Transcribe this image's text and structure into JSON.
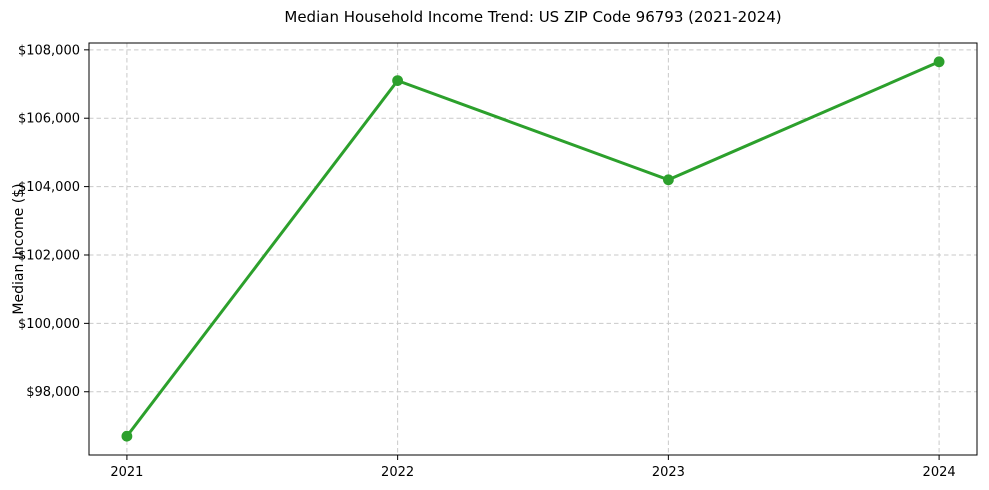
{
  "chart_data": {
    "type": "line",
    "title": "Median Household Income Trend: US ZIP Code 96793 (2021-2024)",
    "xlabel": "",
    "ylabel": "Median Income ($)",
    "x": [
      2021,
      2022,
      2023,
      2024
    ],
    "xtick_labels": [
      "2021",
      "2022",
      "2023",
      "2024"
    ],
    "values": [
      96700,
      107100,
      104200,
      107650
    ],
    "yticks": [
      98000,
      100000,
      102000,
      104000,
      106000,
      108000
    ],
    "ytick_labels": [
      "$98,000",
      "$100,000",
      "$102,000",
      "$104,000",
      "$106,000",
      "$108,000"
    ],
    "xlim": [
      2020.86,
      2024.14
    ],
    "ylim": [
      96150,
      108200
    ],
    "grid": true,
    "grid_style": "dashed",
    "legend": "none",
    "marker": "circle"
  },
  "colors": {
    "line": "#2ca02c",
    "grid": "#c9c9c9",
    "spine": "#000000",
    "tick": "#000000",
    "text": "#000000",
    "background": "#ffffff"
  }
}
